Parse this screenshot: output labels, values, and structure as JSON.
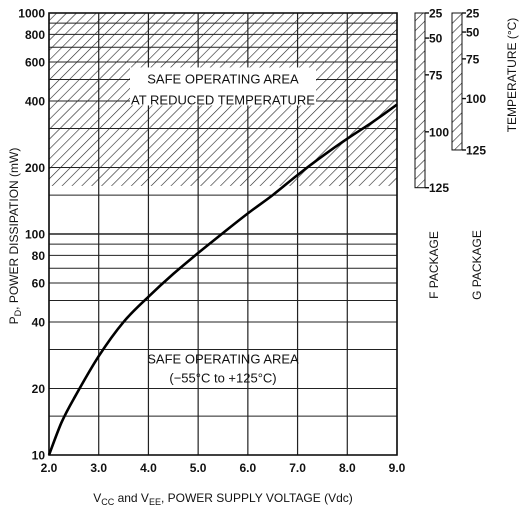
{
  "chart_data": {
    "type": "line",
    "x_axis": {
      "label_prefix": "V",
      "label_sub1": "CC",
      "label_mid": " and V",
      "label_sub2": "EE",
      "label_suffix": ", POWER SUPPLY VOLTAGE (Vdc)",
      "range": [
        2.0,
        9.0
      ],
      "ticks": [
        "2.0",
        "3.0",
        "4.0",
        "5.0",
        "6.0",
        "7.0",
        "8.0",
        "9.0"
      ]
    },
    "y_axis": {
      "label_prefix": "P",
      "label_sub": "D",
      "label_suffix": ", POWER DISSIPATION (mW)",
      "scale": "log",
      "range": [
        10,
        1000
      ],
      "tick_labels": [
        "10",
        "20",
        "40",
        "60",
        "80",
        "100",
        "200",
        "400",
        "600",
        "800",
        "1000"
      ]
    },
    "series": [
      {
        "x": [
          2.0,
          2.25,
          2.5,
          3.0,
          3.5,
          4.0,
          4.5,
          5.0,
          5.5,
          6.0,
          6.5,
          7.0,
          7.5,
          8.0,
          8.5,
          9.0
        ],
        "y": [
          10,
          14,
          18,
          28,
          40,
          52,
          66,
          82,
          101,
          124,
          150,
          185,
          225,
          270,
          320,
          385
        ]
      }
    ],
    "regions": [
      {
        "line1": "SAFE OPERATING AREA",
        "line2": "AT REDUCED TEMPERATURE",
        "y_range": [
          165,
          1000
        ],
        "hatched": true
      },
      {
        "line1": "SAFE OPERATING AREA",
        "line2": "(−55°C to +125°C)",
        "y_range": [
          10,
          165
        ],
        "hatched": false
      }
    ],
    "temperature_scales": [
      {
        "package": "F PACKAGE",
        "marks": [
          {
            "label": "25",
            "mw": 1000
          },
          {
            "label": "50",
            "mw": 770
          },
          {
            "label": "75",
            "mw": 525
          },
          {
            "label": "100",
            "mw": 290
          },
          {
            "label": "125",
            "mw": 162
          }
        ]
      },
      {
        "package": "G PACKAGE",
        "marks": [
          {
            "label": "25",
            "mw": 1000
          },
          {
            "label": "50",
            "mw": 820
          },
          {
            "label": "75",
            "mw": 620
          },
          {
            "label": "100",
            "mw": 410
          },
          {
            "label": "125",
            "mw": 240
          }
        ]
      }
    ],
    "temperature_label": "TEMPERATURE (°C)",
    "grid": true
  }
}
